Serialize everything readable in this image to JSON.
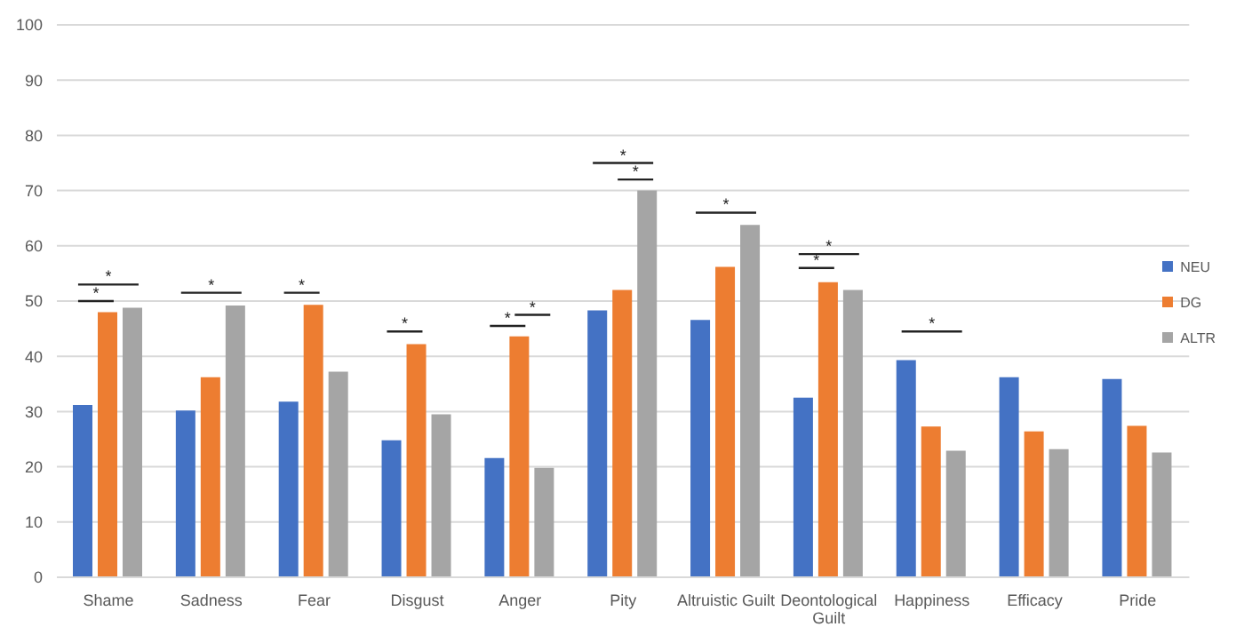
{
  "chart_data": {
    "type": "bar",
    "categories": [
      "Shame",
      "Sadness",
      "Fear",
      "Disgust",
      "Anger",
      "Pity",
      "Altruistic Guilt",
      "Deontological Guilt",
      "Happiness",
      "Efficacy",
      "Pride"
    ],
    "series": [
      {
        "name": "NEU",
        "color": "#4472c4",
        "values": [
          31.2,
          30.2,
          31.8,
          24.8,
          21.6,
          48.3,
          46.6,
          32.5,
          39.3,
          36.2,
          35.9
        ]
      },
      {
        "name": "DG",
        "color": "#ed7d31",
        "values": [
          48,
          36.2,
          49.3,
          42.2,
          43.6,
          52,
          56.2,
          53.4,
          27.3,
          26.4,
          27.4
        ]
      },
      {
        "name": "ALTR",
        "color": "#a5a5a5",
        "values": [
          48.8,
          49.2,
          37.2,
          29.5,
          19.8,
          70,
          63.8,
          52,
          22.9,
          23.2,
          22.6
        ]
      }
    ],
    "ylim": [
      0,
      100
    ],
    "yticks": [
      0,
      10,
      20,
      30,
      40,
      50,
      60,
      70,
      80,
      90,
      100
    ],
    "grid": "y",
    "legend": "right",
    "annotations": [
      "*",
      "*",
      "*",
      "*",
      "*",
      "*",
      "*",
      "*",
      "*",
      "*",
      "*",
      "*",
      "*"
    ]
  }
}
